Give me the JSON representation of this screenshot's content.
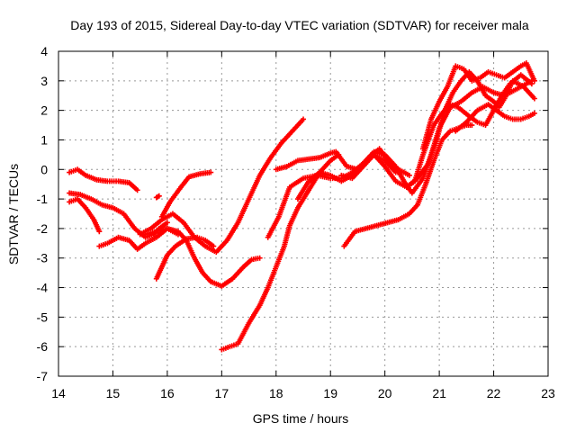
{
  "chart_data": {
    "type": "scatter",
    "title": "Day 193 of 2015, Sidereal Day-to-day VTEC variation (SDTVAR) for receiver mala",
    "xlabel": "GPS time / hours",
    "ylabel": "SDTVAR / TECUs",
    "xlim": [
      14,
      23
    ],
    "ylim": [
      -7,
      4
    ],
    "xticks": [
      "14",
      "15",
      "16",
      "17",
      "18",
      "19",
      "20",
      "21",
      "22",
      "23"
    ],
    "yticks": [
      "-7",
      "-6",
      "-5",
      "-4",
      "-3",
      "-2",
      "-1",
      "0",
      "1",
      "2",
      "3",
      "4"
    ],
    "grid": true,
    "marker": "plus",
    "series_color": "#ff0000",
    "series": [
      {
        "x": [
          14.2,
          14.35,
          14.5,
          14.7,
          14.9,
          15.1,
          15.3,
          15.45
        ],
        "y": [
          -0.1,
          0.0,
          -0.2,
          -0.35,
          -0.4,
          -0.4,
          -0.45,
          -0.7
        ]
      },
      {
        "x": [
          15.8,
          15.85
        ],
        "y": [
          -0.95,
          -0.9
        ]
      },
      {
        "x": [
          15.9,
          16.05,
          16.25,
          16.4,
          16.6,
          16.8
        ],
        "y": [
          -1.6,
          -1.1,
          -0.6,
          -0.25,
          -0.15,
          -0.1
        ]
      },
      {
        "x": [
          14.2,
          14.4,
          14.6,
          14.8,
          15.0,
          15.2,
          15.4,
          15.6,
          15.75,
          15.85,
          16.0
        ],
        "y": [
          -0.8,
          -0.85,
          -1.0,
          -1.2,
          -1.3,
          -1.5,
          -2.0,
          -2.3,
          -2.2,
          -2.0,
          -1.8
        ]
      },
      {
        "x": [
          14.2,
          14.35,
          14.5,
          14.65,
          14.75
        ],
        "y": [
          -1.1,
          -1.0,
          -1.3,
          -1.7,
          -2.1
        ]
      },
      {
        "x": [
          14.75,
          14.9,
          15.1,
          15.3,
          15.45,
          15.6,
          15.8,
          16.0,
          16.2
        ],
        "y": [
          -2.6,
          -2.5,
          -2.3,
          -2.4,
          -2.7,
          -2.5,
          -2.3,
          -2.0,
          -2.2
        ]
      },
      {
        "x": [
          15.8,
          15.9,
          16.0,
          16.15,
          16.35,
          16.55,
          16.7,
          16.85
        ],
        "y": [
          -3.7,
          -3.3,
          -2.9,
          -2.6,
          -2.35,
          -2.3,
          -2.4,
          -2.6
        ]
      },
      {
        "x": [
          15.5,
          15.7,
          15.9,
          16.1,
          16.3,
          16.5,
          16.7,
          16.9,
          17.1,
          17.3,
          17.5,
          17.7,
          17.9,
          18.1,
          18.3,
          18.5
        ],
        "y": [
          -2.2,
          -2.0,
          -1.7,
          -1.5,
          -1.8,
          -2.3,
          -2.6,
          -2.8,
          -2.4,
          -1.8,
          -1.0,
          -0.2,
          0.4,
          0.9,
          1.3,
          1.7
        ]
      },
      {
        "x": [
          15.6,
          15.8,
          16.0,
          16.2,
          16.35,
          16.5,
          16.65,
          16.8,
          17.0,
          17.2,
          17.4,
          17.55,
          17.7
        ],
        "y": [
          -2.2,
          -2.1,
          -2.0,
          -2.1,
          -2.4,
          -3.0,
          -3.5,
          -3.8,
          -3.95,
          -3.7,
          -3.3,
          -3.05,
          -3.0
        ]
      },
      {
        "x": [
          17.0,
          17.15,
          17.3,
          17.5,
          17.7,
          17.85,
          18.0,
          18.15,
          18.25,
          18.4,
          18.6,
          18.8,
          19.0,
          19.15
        ],
        "y": [
          -6.1,
          -6.0,
          -5.9,
          -5.2,
          -4.6,
          -4.0,
          -3.3,
          -2.6,
          -1.9,
          -1.3,
          -0.7,
          -0.1,
          0.3,
          0.5
        ]
      },
      {
        "x": [
          17.85,
          18.05,
          18.25,
          18.5,
          18.75,
          19.0,
          19.2,
          19.4,
          19.6,
          19.8,
          20.0,
          20.2,
          20.35
        ],
        "y": [
          -2.3,
          -1.6,
          -0.6,
          -0.3,
          -0.2,
          -0.3,
          -0.3,
          -0.1,
          0.2,
          0.5,
          0.3,
          -0.1,
          -0.1
        ]
      },
      {
        "x": [
          18.0,
          18.2,
          18.4,
          18.6,
          18.8,
          19.0,
          19.1,
          19.3,
          19.5,
          19.7,
          19.9,
          20.1,
          20.25,
          20.45
        ],
        "y": [
          0.0,
          0.1,
          0.3,
          0.35,
          0.4,
          0.55,
          0.6,
          0.1,
          0.0,
          0.4,
          0.7,
          0.2,
          0.0,
          -0.2
        ]
      },
      {
        "x": [
          18.4,
          18.6,
          18.8,
          19.0,
          19.2,
          19.4,
          19.6,
          19.8,
          20.0,
          20.2,
          20.35,
          20.5,
          20.7,
          20.85,
          21.0,
          21.2,
          21.4,
          21.6,
          21.8,
          22.0,
          22.2,
          22.4,
          22.6,
          22.7
        ],
        "y": [
          -1.0,
          -0.4,
          -0.1,
          -0.2,
          -0.4,
          -0.2,
          0.2,
          0.6,
          0.5,
          0.1,
          -0.4,
          -0.8,
          -0.3,
          0.5,
          1.4,
          2.1,
          2.3,
          2.6,
          2.8,
          2.6,
          2.5,
          2.7,
          2.9,
          3.0
        ]
      },
      {
        "x": [
          19.25,
          19.45,
          19.65,
          19.85,
          20.05,
          20.25,
          20.45,
          20.6,
          20.75,
          20.9,
          21.05,
          21.2,
          21.35,
          21.5,
          21.6
        ],
        "y": [
          -2.6,
          -2.1,
          -2.0,
          -1.9,
          -1.8,
          -1.7,
          -1.5,
          -1.2,
          -0.5,
          0.3,
          1.0,
          1.3,
          1.4,
          1.5,
          1.5
        ]
      },
      {
        "x": [
          19.2,
          19.4,
          19.6,
          19.8,
          20.0,
          20.2,
          20.4,
          20.55,
          20.7,
          20.9,
          21.05,
          21.2,
          21.35,
          21.55,
          21.7,
          21.85,
          22.0,
          22.15,
          22.3,
          22.5,
          22.7
        ],
        "y": [
          -0.2,
          -0.3,
          0.1,
          0.5,
          0.1,
          -0.4,
          -0.6,
          -0.4,
          0.5,
          1.5,
          1.9,
          2.2,
          2.1,
          1.8,
          1.6,
          1.5,
          2.0,
          2.5,
          2.9,
          3.2,
          2.9
        ]
      },
      {
        "x": [
          20.4,
          20.6,
          20.8,
          20.95,
          21.1,
          21.25,
          21.4,
          21.55,
          21.7,
          21.85,
          22.0,
          22.1,
          22.2,
          22.35,
          22.55,
          22.75
        ],
        "y": [
          -0.6,
          -0.3,
          0.2,
          1.0,
          2.0,
          2.6,
          3.0,
          3.3,
          3.0,
          2.5,
          2.3,
          2.1,
          2.4,
          3.0,
          2.8,
          2.4
        ]
      },
      {
        "x": [
          20.7,
          20.85,
          21.0,
          21.15,
          21.3,
          21.45,
          21.6,
          21.75,
          21.9,
          22.05,
          22.2,
          22.35,
          22.5,
          22.6,
          22.75
        ],
        "y": [
          0.7,
          1.7,
          2.3,
          2.8,
          3.5,
          3.4,
          3.0,
          3.1,
          3.3,
          3.2,
          3.1,
          3.3,
          3.5,
          3.6,
          3.0
        ]
      },
      {
        "x": [
          21.3,
          21.5,
          21.7,
          21.9,
          22.05,
          22.2,
          22.35,
          22.5,
          22.65,
          22.75
        ],
        "y": [
          1.3,
          1.6,
          2.0,
          2.2,
          2.0,
          1.8,
          1.7,
          1.7,
          1.8,
          1.9
        ]
      }
    ]
  }
}
